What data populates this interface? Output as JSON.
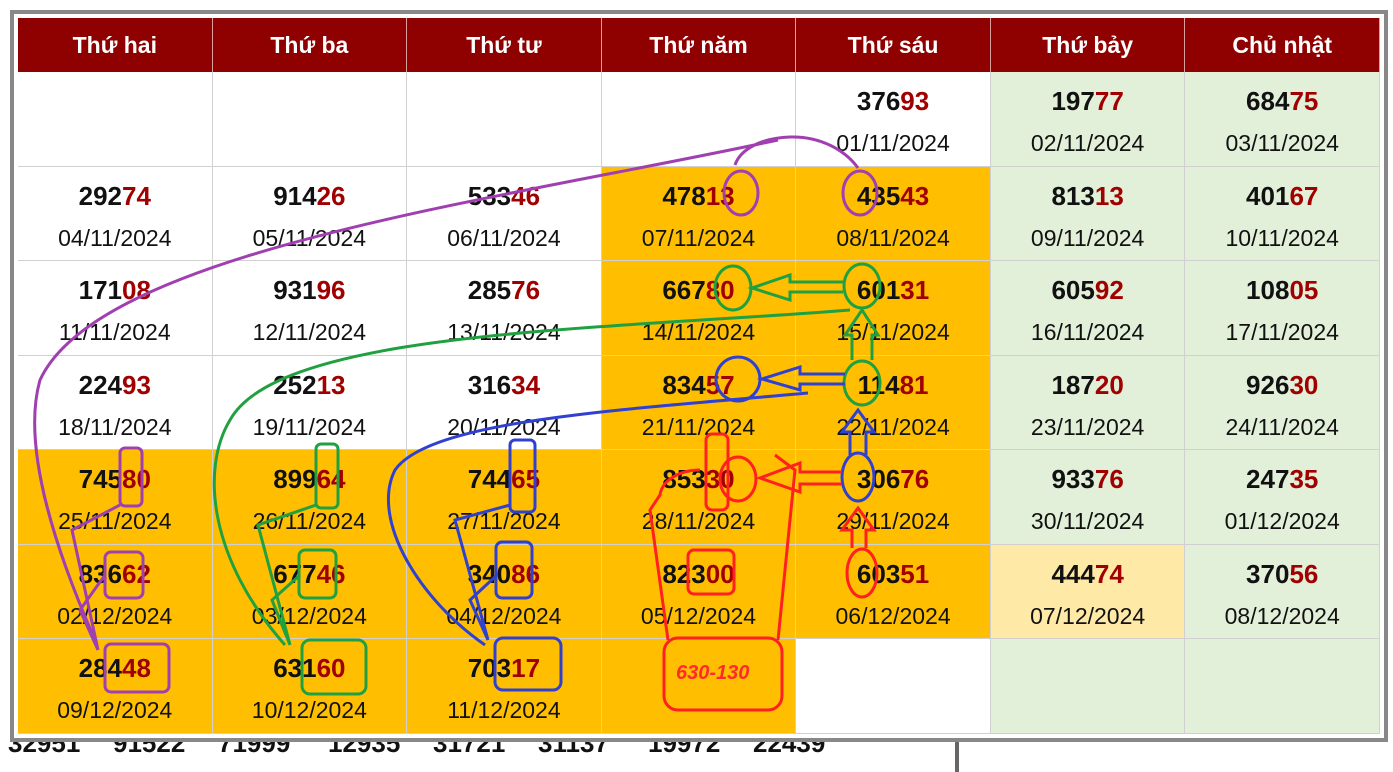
{
  "weekdays": [
    "Thứ hai",
    "Thứ ba",
    "Thứ tư",
    "Thứ năm",
    "Thứ sáu",
    "Thứ bảy",
    "Chủ nhật"
  ],
  "rows": [
    [
      {
        "head": "",
        "tail": "",
        "date": "",
        "bg": "w"
      },
      {
        "head": "",
        "tail": "",
        "date": "",
        "bg": "w"
      },
      {
        "head": "",
        "tail": "",
        "date": "",
        "bg": "w"
      },
      {
        "head": "",
        "tail": "",
        "date": "",
        "bg": "w"
      },
      {
        "head": "376",
        "tail": "93",
        "date": "01/11/2024",
        "bg": "w"
      },
      {
        "head": "197",
        "tail": "77",
        "date": "02/11/2024",
        "bg": "g"
      },
      {
        "head": "684",
        "tail": "75",
        "date": "03/11/2024",
        "bg": "g"
      }
    ],
    [
      {
        "head": "292",
        "tail": "74",
        "date": "04/11/2024",
        "bg": "w"
      },
      {
        "head": "914",
        "tail": "26",
        "date": "05/11/2024",
        "bg": "w"
      },
      {
        "head": "533",
        "tail": "46",
        "date": "06/11/2024",
        "bg": "w"
      },
      {
        "head": "478",
        "tail": "13",
        "date": "07/11/2024",
        "bg": "o"
      },
      {
        "head": "435",
        "tail": "43",
        "date": "08/11/2024",
        "bg": "o"
      },
      {
        "head": "813",
        "tail": "13",
        "date": "09/11/2024",
        "bg": "g"
      },
      {
        "head": "401",
        "tail": "67",
        "date": "10/11/2024",
        "bg": "g"
      }
    ],
    [
      {
        "head": "171",
        "tail": "08",
        "date": "11/11/2024",
        "bg": "w"
      },
      {
        "head": "931",
        "tail": "96",
        "date": "12/11/2024",
        "bg": "w"
      },
      {
        "head": "285",
        "tail": "76",
        "date": "13/11/2024",
        "bg": "w"
      },
      {
        "head": "667",
        "tail": "80",
        "date": "14/11/2024",
        "bg": "o"
      },
      {
        "head": "601",
        "tail": "31",
        "date": "15/11/2024",
        "bg": "o"
      },
      {
        "head": "605",
        "tail": "92",
        "date": "16/11/2024",
        "bg": "g"
      },
      {
        "head": "108",
        "tail": "05",
        "date": "17/11/2024",
        "bg": "g"
      }
    ],
    [
      {
        "head": "224",
        "tail": "93",
        "date": "18/11/2024",
        "bg": "w"
      },
      {
        "head": "252",
        "tail": "13",
        "date": "19/11/2024",
        "bg": "w"
      },
      {
        "head": "316",
        "tail": "34",
        "date": "20/11/2024",
        "bg": "w"
      },
      {
        "head": "834",
        "tail": "57",
        "date": "21/11/2024",
        "bg": "o"
      },
      {
        "head": "114",
        "tail": "81",
        "date": "22/11/2024",
        "bg": "o"
      },
      {
        "head": "187",
        "tail": "20",
        "date": "23/11/2024",
        "bg": "g"
      },
      {
        "head": "926",
        "tail": "30",
        "date": "24/11/2024",
        "bg": "g"
      }
    ],
    [
      {
        "head": "745",
        "tail": "80",
        "date": "25/11/2024",
        "bg": "o"
      },
      {
        "head": "899",
        "tail": "64",
        "date": "26/11/2024",
        "bg": "o"
      },
      {
        "head": "744",
        "tail": "65",
        "date": "27/11/2024",
        "bg": "o"
      },
      {
        "head": "853",
        "tail": "30",
        "date": "28/11/2024",
        "bg": "o"
      },
      {
        "head": "306",
        "tail": "76",
        "date": "29/11/2024",
        "bg": "o"
      },
      {
        "head": "933",
        "tail": "76",
        "date": "30/11/2024",
        "bg": "g"
      },
      {
        "head": "247",
        "tail": "35",
        "date": "01/12/2024",
        "bg": "g"
      }
    ],
    [
      {
        "head": "836",
        "tail": "62",
        "date": "02/12/2024",
        "bg": "o"
      },
      {
        "head": "677",
        "tail": "46",
        "date": "03/12/2024",
        "bg": "o"
      },
      {
        "head": "340",
        "tail": "86",
        "date": "04/12/2024",
        "bg": "o"
      },
      {
        "head": "823",
        "tail": "00",
        "date": "05/12/2024",
        "bg": "o"
      },
      {
        "head": "603",
        "tail": "51",
        "date": "06/12/2024",
        "bg": "o"
      },
      {
        "head": "444",
        "tail": "74",
        "date": "07/12/2024",
        "bg": "y"
      },
      {
        "head": "370",
        "tail": "56",
        "date": "08/12/2024",
        "bg": "g"
      }
    ],
    [
      {
        "head": "284",
        "tail": "48",
        "date": "09/12/2024",
        "bg": "o"
      },
      {
        "head": "631",
        "tail": "60",
        "date": "10/12/2024",
        "bg": "o"
      },
      {
        "head": "703",
        "tail": "17",
        "date": "11/12/2024",
        "bg": "o"
      },
      {
        "head": "",
        "tail": "",
        "date": "",
        "bg": "o"
      },
      {
        "head": "",
        "tail": "",
        "date": "",
        "bg": "w"
      },
      {
        "head": "",
        "tail": "",
        "date": "",
        "bg": "g"
      },
      {
        "head": "",
        "tail": "",
        "date": "",
        "bg": "g"
      }
    ]
  ],
  "annotation_note": "630-130",
  "bottom_strip": [
    "32951",
    "91522",
    "71999",
    "12935",
    "31721",
    "31137",
    "19972",
    "22439"
  ],
  "colors": {
    "header_bg": "#8f0000",
    "highlight_orange": "#ffbf00",
    "weekend_green": "#e2efd9",
    "tail_digits": "#a00000",
    "purple_marker": "#a040b0",
    "green_marker": "#20a040",
    "blue_marker": "#3040d0",
    "red_marker": "#ff2020"
  }
}
